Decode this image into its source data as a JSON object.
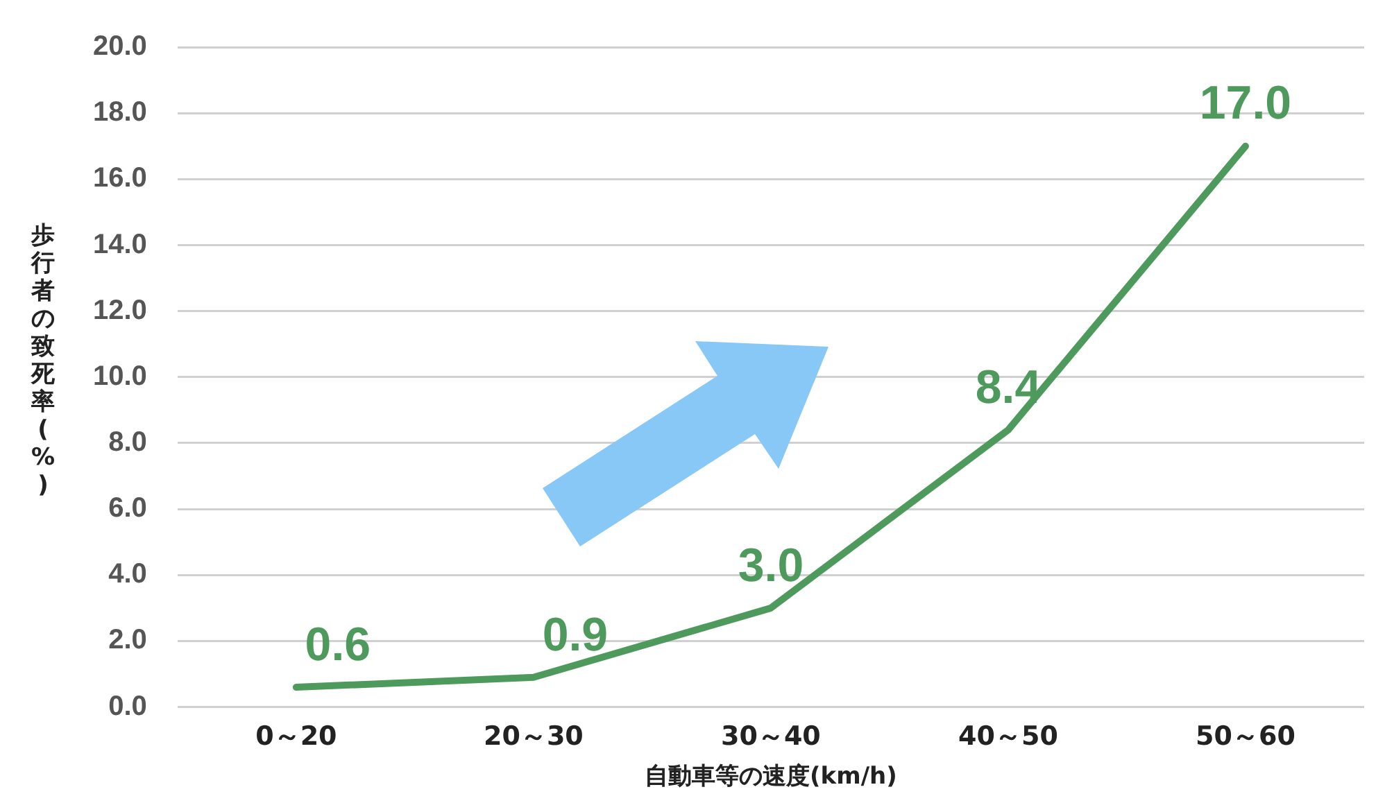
{
  "chart_data": {
    "type": "line",
    "xlabel": "自動車等の速度(km/h)",
    "ylabel": "歩行者の致死率(%)",
    "categories": [
      "0～20",
      "20～30",
      "30～40",
      "40～50",
      "50～60"
    ],
    "series": [
      {
        "color": "#4e9a5c",
        "values": [
          0.6,
          0.9,
          3.0,
          8.4,
          17.0
        ],
        "value_labels": [
          "0.6",
          "0.9",
          "3.0",
          "8.4",
          "17.0"
        ]
      }
    ],
    "ylim": [
      0,
      20
    ],
    "yticks": [
      {
        "value": 0,
        "label": "0.0"
      },
      {
        "value": 2,
        "label": "2.0"
      },
      {
        "value": 4,
        "label": "4.0"
      },
      {
        "value": 6,
        "label": "6.0"
      },
      {
        "value": 8,
        "label": "8.0"
      },
      {
        "value": 10,
        "label": "10.0"
      },
      {
        "value": 12,
        "label": "12.0"
      },
      {
        "value": 14,
        "label": "14.0"
      },
      {
        "value": 16,
        "label": "16.0"
      },
      {
        "value": 18,
        "label": "18.0"
      },
      {
        "value": 20,
        "label": "20.0"
      }
    ],
    "grid": "y",
    "legend": false,
    "marker": "none",
    "line_style": "solid"
  }
}
